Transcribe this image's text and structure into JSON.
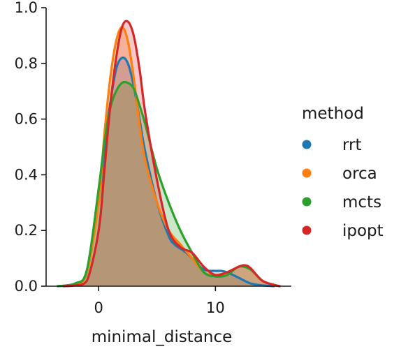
{
  "chart_data": {
    "type": "area",
    "xlabel": "minimal_distance",
    "ylabel": "",
    "xlim": [
      -4.5,
      16.5
    ],
    "ylim": [
      0,
      1.0
    ],
    "xticks": [
      0,
      10
    ],
    "xtick_labels": [
      "0",
      "10"
    ],
    "yticks": [
      0,
      0.2,
      0.4,
      0.6,
      0.8,
      1.0
    ],
    "ytick_labels": [
      "0.0",
      "0.2",
      "0.4",
      "0.6",
      "0.8",
      "1.0"
    ],
    "grid": false,
    "legend": {
      "title": "method",
      "position": "right"
    },
    "series": [
      {
        "name": "rrt",
        "color": "#1f77b4",
        "x": [
          -3.5,
          -2,
          -1,
          0,
          0.5,
          1,
          1.5,
          2,
          2.5,
          3,
          3.5,
          4,
          5,
          6,
          6.5,
          7,
          7.5,
          8,
          9,
          10,
          10.5,
          11,
          12,
          13,
          14,
          15
        ],
        "y": [
          0.0,
          0.01,
          0.05,
          0.3,
          0.5,
          0.66,
          0.78,
          0.82,
          0.8,
          0.72,
          0.6,
          0.48,
          0.3,
          0.18,
          0.15,
          0.135,
          0.12,
          0.1,
          0.06,
          0.055,
          0.055,
          0.05,
          0.03,
          0.01,
          0.003,
          0.0
        ]
      },
      {
        "name": "orca",
        "color": "#ff7f0e",
        "x": [
          -3,
          -2,
          -1,
          0,
          0.5,
          1,
          1.5,
          2,
          2.5,
          3,
          3.5,
          4,
          5,
          6,
          7,
          8,
          9,
          10,
          11,
          12,
          12.5,
          13,
          14,
          15,
          15.5
        ],
        "y": [
          0.0,
          0.005,
          0.05,
          0.3,
          0.55,
          0.75,
          0.88,
          0.93,
          0.88,
          0.75,
          0.58,
          0.45,
          0.3,
          0.2,
          0.15,
          0.1,
          0.05,
          0.04,
          0.05,
          0.07,
          0.07,
          0.06,
          0.02,
          0.005,
          0.0
        ]
      },
      {
        "name": "mcts",
        "color": "#2ca02c",
        "x": [
          -3.5,
          -2,
          -1,
          0,
          0.5,
          1,
          1.5,
          2,
          2.5,
          3,
          3.5,
          4,
          5,
          6,
          7,
          8,
          9,
          10,
          11,
          12,
          13,
          14,
          15,
          15.5
        ],
        "y": [
          0.0,
          0.01,
          0.06,
          0.35,
          0.52,
          0.64,
          0.7,
          0.73,
          0.73,
          0.71,
          0.65,
          0.58,
          0.42,
          0.3,
          0.2,
          0.12,
          0.05,
          0.035,
          0.04,
          0.07,
          0.06,
          0.02,
          0.005,
          0.0
        ]
      },
      {
        "name": "ipopt",
        "color": "#d62728",
        "x": [
          -3,
          -2,
          -1,
          0,
          0.5,
          1,
          1.5,
          2,
          2.5,
          3,
          3.5,
          4,
          5,
          6,
          7,
          8,
          9,
          10,
          11,
          12,
          12.5,
          13,
          14,
          15,
          15.5
        ],
        "y": [
          0.0,
          0.003,
          0.02,
          0.2,
          0.42,
          0.65,
          0.82,
          0.93,
          0.95,
          0.9,
          0.78,
          0.62,
          0.38,
          0.2,
          0.14,
          0.12,
          0.07,
          0.04,
          0.05,
          0.07,
          0.075,
          0.065,
          0.02,
          0.005,
          0.0
        ]
      }
    ]
  }
}
